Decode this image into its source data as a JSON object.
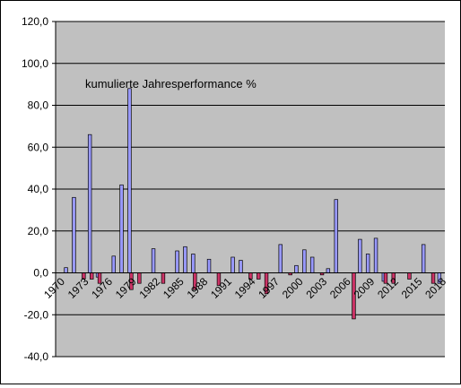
{
  "chart_data": {
    "type": "bar",
    "annotation": "kumulierte Jahresperformance %",
    "ylim": [
      -40,
      120
    ],
    "y_tick_labels": [
      "120,0",
      "100,0",
      "80,0",
      "60,0",
      "40,0",
      "20,0",
      "0,0",
      "-20,0",
      "-40,0"
    ],
    "x_tick_labels": [
      "1970",
      "1973",
      "1976",
      "1979",
      "1982",
      "1985",
      "1988",
      "1991",
      "1994",
      "1997",
      "2000",
      "2003",
      "2006",
      "2009",
      "2012",
      "2015",
      "2018"
    ],
    "grid": true,
    "legend": "none",
    "categories": [
      "1970",
      "1971",
      "1972",
      "1973",
      "1974",
      "1975",
      "1976",
      "1977",
      "1978",
      "1979",
      "1980",
      "1981",
      "1982",
      "1983",
      "1984",
      "1985",
      "1986",
      "1987",
      "1988",
      "1989",
      "1990",
      "1991",
      "1992",
      "1993",
      "1994",
      "1995",
      "1996",
      "1997",
      "1998",
      "1999",
      "2000",
      "2001",
      "2002",
      "2003",
      "2004",
      "2005",
      "2006",
      "2007",
      "2008",
      "2009",
      "2010",
      "2011",
      "2012",
      "2013",
      "2014",
      "2015",
      "2016",
      "2017",
      "2018"
    ],
    "series": [
      {
        "color": "#9999ff",
        "values": [
          0,
          2.5,
          36,
          0,
          66,
          -2,
          0,
          8,
          42,
          88,
          0,
          0,
          11.5,
          0,
          0,
          10.5,
          12.5,
          9,
          0,
          6.5,
          0,
          0,
          7.5,
          6,
          0,
          0,
          0,
          0,
          13.5,
          0,
          3.5,
          11,
          7.5,
          0,
          2,
          35,
          0,
          0,
          16,
          9,
          16.5,
          -4,
          0,
          0,
          0,
          0,
          13.5,
          0,
          -5
        ]
      },
      {
        "color": "#cc3366",
        "values": [
          0,
          0,
          0,
          -3,
          -3,
          -5,
          0,
          0,
          0,
          -8,
          -5,
          0,
          0,
          -5,
          0,
          0,
          0,
          -8,
          0,
          0,
          -6,
          0,
          0,
          0,
          -3,
          -3,
          -10,
          0,
          0,
          -1,
          0,
          0,
          0,
          -1,
          0,
          0,
          0,
          -22,
          0,
          0,
          0,
          -5,
          -5,
          0,
          -3,
          0,
          0,
          -5,
          0
        ]
      }
    ]
  }
}
